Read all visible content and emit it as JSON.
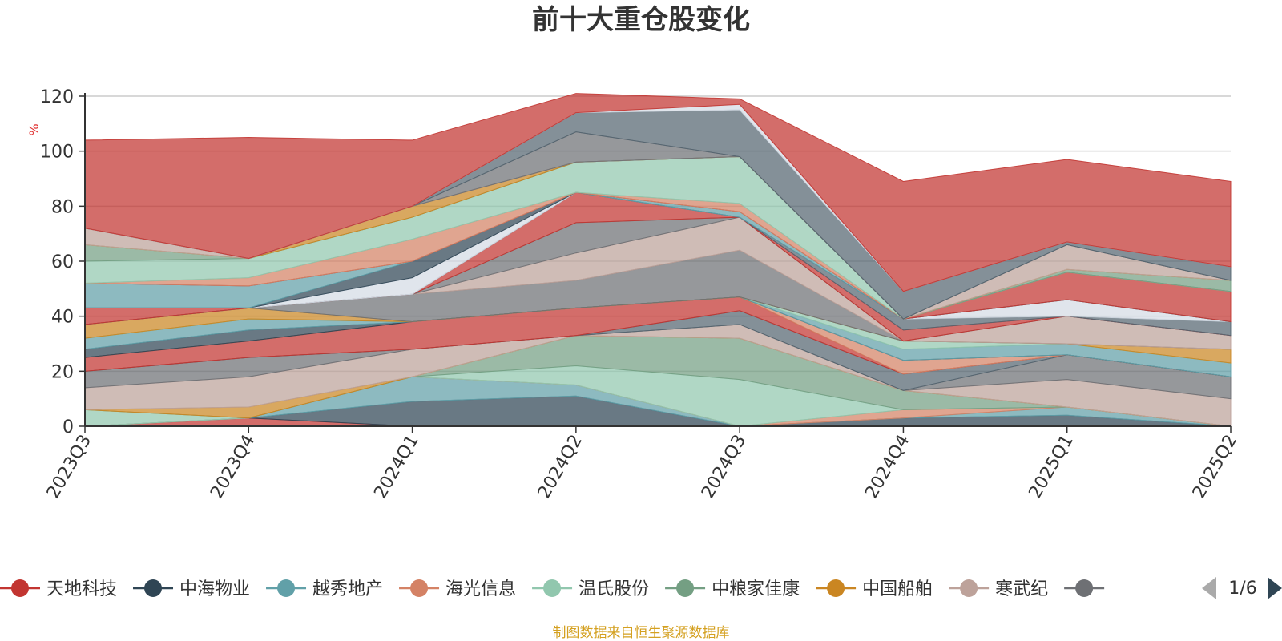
{
  "chart_data": {
    "type": "area",
    "title": "前十大重仓股变化",
    "unit": "%",
    "ylim": [
      0,
      120
    ],
    "yticks": [
      0,
      20,
      40,
      60,
      80,
      100,
      120
    ],
    "categories": [
      "2023Q3",
      "2023Q4",
      "2024Q1",
      "2024Q2",
      "2024Q3",
      "2024Q4",
      "2025Q1",
      "2025Q2"
    ],
    "stacked": true,
    "grid": true,
    "legend_position": "bottom",
    "series": [
      {
        "name": "天地科技",
        "color": "#c23531",
        "values": [
          0,
          3,
          0,
          0,
          0,
          0,
          0,
          0
        ]
      },
      {
        "name": "中海物业",
        "color": "#2f4554",
        "values": [
          0,
          0,
          9,
          11,
          0,
          3,
          4,
          0
        ]
      },
      {
        "name": "越秀地产",
        "color": "#61a0a8",
        "values": [
          0,
          0,
          9,
          4,
          0,
          0,
          3,
          0
        ]
      },
      {
        "name": "海光信息",
        "color": "#d48265",
        "values": [
          0,
          0,
          0,
          0,
          0,
          3,
          0,
          0
        ]
      },
      {
        "name": "温氏股份",
        "color": "#91c7ae",
        "values": [
          6,
          0,
          0,
          7,
          17,
          0,
          0,
          0
        ]
      },
      {
        "name": "中粮家佳康",
        "color": "#749f83",
        "values": [
          0,
          0,
          0,
          11,
          15,
          7,
          0,
          0
        ]
      },
      {
        "name": "中国船舶",
        "color": "#ca8622",
        "values": [
          0,
          4,
          0,
          0,
          0,
          0,
          0,
          0
        ]
      },
      {
        "name": "寒武纪",
        "color": "#bda29a",
        "values": [
          8,
          11,
          10,
          0,
          5,
          0,
          10,
          10
        ]
      },
      {
        "name": "",
        "color": "#6e7074",
        "values": [
          6,
          7,
          0,
          0,
          0,
          0,
          9,
          8
        ]
      },
      {
        "name": "",
        "color": "#546570",
        "values": [
          0,
          0,
          0,
          0,
          5,
          6,
          0,
          0
        ]
      },
      {
        "name": "",
        "color": "#c23531",
        "values": [
          5,
          6,
          10,
          10,
          5,
          0,
          0,
          0
        ]
      },
      {
        "name": "",
        "color": "#d48265",
        "values": [
          0,
          0,
          0,
          0,
          0,
          5,
          0,
          0
        ]
      },
      {
        "name": "",
        "color": "#2f4554",
        "values": [
          3,
          4,
          0,
          0,
          0,
          0,
          0,
          0
        ]
      },
      {
        "name": "",
        "color": "#61a0a8",
        "values": [
          4,
          4,
          0,
          0,
          0,
          4,
          4,
          5
        ]
      },
      {
        "name": "",
        "color": "#91c7ae",
        "values": [
          0,
          0,
          0,
          0,
          0,
          3,
          0,
          0
        ]
      },
      {
        "name": "",
        "color": "#ca8622",
        "values": [
          5,
          4,
          0,
          0,
          0,
          0,
          0,
          5
        ]
      },
      {
        "name": "",
        "color": "#6e7074",
        "values": [
          0,
          0,
          10,
          10,
          17,
          0,
          0,
          0
        ]
      },
      {
        "name": "",
        "color": "#bda29a",
        "values": [
          0,
          0,
          0,
          10,
          12,
          0,
          10,
          5
        ]
      },
      {
        "name": "",
        "color": "#6e7074",
        "values": [
          0,
          0,
          0,
          11,
          0,
          0,
          0,
          0
        ]
      },
      {
        "name": "",
        "color": "#c23531",
        "values": [
          6,
          0,
          0,
          11,
          0,
          4,
          0,
          0
        ]
      },
      {
        "name": "",
        "color": "#546570",
        "values": [
          0,
          0,
          0,
          0,
          0,
          4,
          0,
          5
        ]
      },
      {
        "name": "",
        "color": "#d4dbe4",
        "values": [
          0,
          0,
          6,
          0,
          0,
          0,
          6,
          0
        ]
      },
      {
        "name": "",
        "color": "#2f4554",
        "values": [
          0,
          0,
          6,
          0,
          0,
          0,
          0,
          0
        ]
      },
      {
        "name": "",
        "color": "#61a0a8",
        "values": [
          9,
          8,
          0,
          0,
          2,
          0,
          0,
          0
        ]
      },
      {
        "name": "",
        "color": "#c23531",
        "values": [
          0,
          0,
          0,
          0,
          0,
          0,
          10,
          11
        ]
      },
      {
        "name": "",
        "color": "#d48265",
        "values": [
          0,
          3,
          8,
          0,
          3,
          0,
          0,
          0
        ]
      },
      {
        "name": "",
        "color": "#91c7ae",
        "values": [
          8,
          7,
          8,
          11,
          17,
          0,
          0,
          0
        ]
      },
      {
        "name": "",
        "color": "#749f83",
        "values": [
          6,
          0,
          0,
          0,
          0,
          0,
          1,
          4
        ]
      },
      {
        "name": "",
        "color": "#ca8622",
        "values": [
          0,
          0,
          4,
          0,
          0,
          0,
          0,
          0
        ]
      },
      {
        "name": "",
        "color": "#bda29a",
        "values": [
          6,
          0,
          0,
          0,
          0,
          0,
          9,
          0
        ]
      },
      {
        "name": "",
        "color": "#6e7074",
        "values": [
          0,
          0,
          0,
          11,
          0,
          0,
          0,
          0
        ]
      },
      {
        "name": "",
        "color": "#546570",
        "values": [
          0,
          0,
          0,
          7,
          17,
          10,
          1,
          5
        ]
      },
      {
        "name": "",
        "color": "#d4dbe4",
        "values": [
          0,
          0,
          0,
          0,
          2,
          0,
          0,
          0
        ]
      },
      {
        "name": "",
        "color": "#c23531",
        "values": [
          32,
          44,
          24,
          7,
          2,
          40,
          30,
          31
        ]
      }
    ]
  },
  "legend": {
    "items": [
      {
        "label": "天地科技",
        "color": "#c23531"
      },
      {
        "label": "中海物业",
        "color": "#2f4554"
      },
      {
        "label": "越秀地产",
        "color": "#61a0a8"
      },
      {
        "label": "海光信息",
        "color": "#d48265"
      },
      {
        "label": "温氏股份",
        "color": "#91c7ae"
      },
      {
        "label": "中粮家佳康",
        "color": "#749f83"
      },
      {
        "label": "中国船舶",
        "color": "#ca8622"
      },
      {
        "label": "寒武纪",
        "color": "#bda29a"
      },
      {
        "label": "",
        "color": "#6e7074"
      }
    ],
    "page_indicator": "1/6",
    "page_current": 1,
    "page_total": 6
  },
  "footer": {
    "source": "制图数据来自恒生聚源数据库"
  },
  "icons": {
    "prev": "triangle-left-icon",
    "next": "triangle-right-icon"
  }
}
